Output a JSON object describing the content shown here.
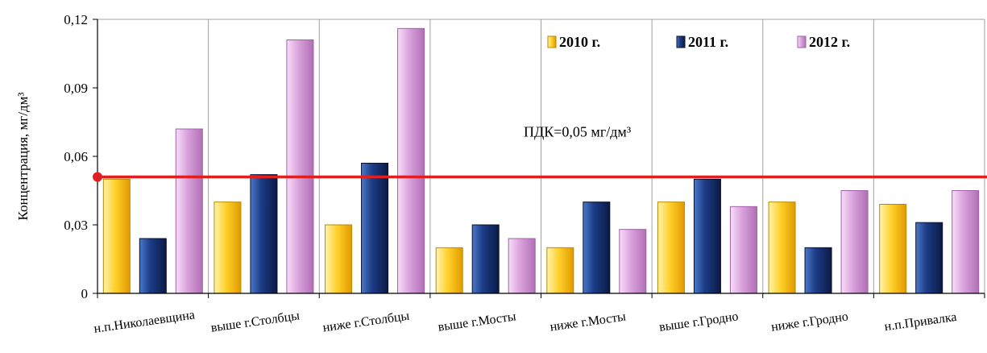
{
  "chart_data": {
    "type": "bar",
    "ylabel": "Концентрация, мг/дм³",
    "ylim": [
      0,
      0.12
    ],
    "yticks": [
      "0",
      "0,03",
      "0,06",
      "0,09",
      "0,12"
    ],
    "ytick_values": [
      0,
      0.03,
      0.06,
      0.09,
      0.12
    ],
    "grid": "vertical",
    "legend_position": "top-right",
    "categories": [
      "н.п.Николаевщина",
      "выше г.Столбцы",
      "ниже г.Столбцы",
      "выше г.Мосты",
      "ниже г.Мосты",
      "выше г.Гродно",
      "ниже г.Гродно",
      "н.п.Привалка"
    ],
    "series": [
      {
        "name": "2010 г.",
        "color": "#f7c21a",
        "values": [
          0.05,
          0.04,
          0.03,
          0.02,
          0.02,
          0.04,
          0.04,
          0.039
        ]
      },
      {
        "name": "2011 г.",
        "color": "#1f3a78",
        "values": [
          0.024,
          0.052,
          0.057,
          0.03,
          0.04,
          0.05,
          0.02,
          0.031
        ]
      },
      {
        "name": "2012 г.",
        "color": "#d9a4db",
        "values": [
          0.072,
          0.111,
          0.116,
          0.024,
          0.028,
          0.038,
          0.045,
          0.045
        ]
      }
    ],
    "threshold": {
      "value": 0.051,
      "label": "ПДК=0,05 мг/дм³",
      "color": "#e02020"
    }
  }
}
